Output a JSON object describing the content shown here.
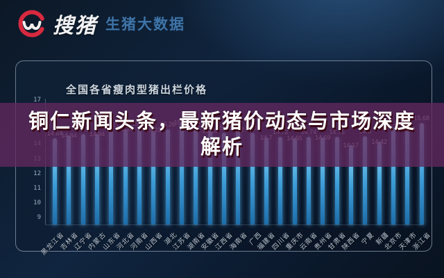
{
  "brand": {
    "logo_text": "搜猪",
    "tagline": "生猪大数据",
    "logo_color": "#d8293f"
  },
  "headline": {
    "line1": "铜仁新闻头条，最新猪价动态与市场深度",
    "line2": "解析"
  },
  "chart_data": {
    "type": "bar",
    "title": "全国各省瘦肉型猪出栏价格",
    "categories": [
      "黑龙江省",
      "吉林省",
      "辽宁省",
      "内蒙古",
      "山东省",
      "河北省",
      "河南省",
      "山西省",
      "湖北",
      "江苏省",
      "湖南省",
      "安徽省",
      "江西省",
      "海南省",
      "广西",
      "福建省",
      "四川省",
      "重庆市",
      "云南省",
      "贵州省",
      "甘肃省",
      "陕西省",
      "宁夏",
      "新疆",
      "北京市",
      "天津市",
      "浙江省"
    ],
    "values": [
      14.64,
      14.84,
      14.9,
      14.94,
      15.21,
      15.24,
      15.28,
      15.22,
      15.26,
      15.75,
      15.27,
      15.18,
      15.01,
      15.2,
      15.02,
      14.7,
      14.72,
      14.65,
      14.74,
      14.69,
      14.75,
      14.17,
      14.8,
      14.42,
      15.35,
      15.26,
      15.68
    ],
    "yticks": [
      9,
      10,
      11,
      12,
      13,
      14,
      15,
      16,
      17
    ],
    "ylim": [
      8.76,
      17.1
    ],
    "xlabel": "",
    "ylabel": "",
    "grid": "off",
    "legend": "none",
    "bar_color_top": "#8edcf9",
    "bar_color_bottom": "#1e6da9"
  },
  "colors": {
    "background_navy": "#0e2038",
    "panel_border": "#bcd0e2",
    "headline_band": "#60285e",
    "headline_text": "#ffffff",
    "tagline_blue": "#3e74a8",
    "logo_red": "#d8293f"
  }
}
